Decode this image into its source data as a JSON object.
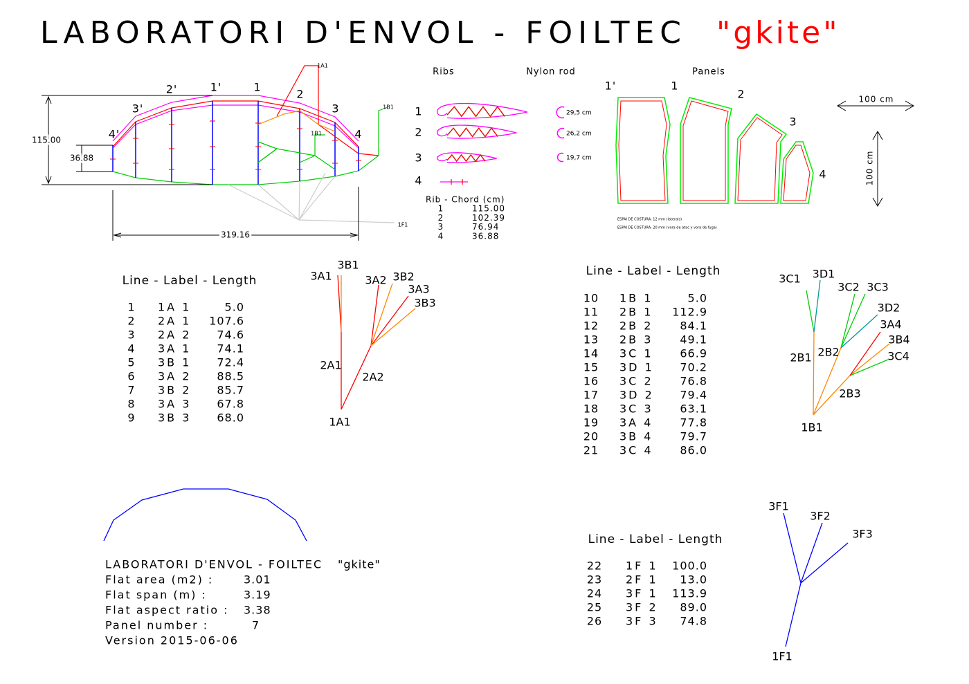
{
  "title": "LABORATORI D'ENVOL - FOILTEC",
  "title_tag": "\"gkite\"",
  "front_view": {
    "rib_labels": [
      "4'",
      "3'",
      "2'",
      "1'",
      "1",
      "2",
      "3",
      "4"
    ],
    "height": "115.00",
    "tip_height": "36.88",
    "span": "319.16",
    "anchors": [
      "1A1",
      "1B1",
      "1B1",
      "1F1"
    ]
  },
  "ribs": {
    "heading": "Ribs",
    "rod_heading": "Nylon rod",
    "numbers": [
      "1",
      "2",
      "3",
      "4"
    ],
    "rods": [
      "29,5 cm",
      "26,2 cm",
      "19,7 cm"
    ],
    "chord_header": "Rib - Chord (cm)",
    "chord_rows": [
      [
        "1",
        "115.00"
      ],
      [
        "2",
        "102.39"
      ],
      [
        "3",
        "76.94"
      ],
      [
        "4",
        "36.88"
      ]
    ]
  },
  "panels": {
    "heading": "Panels",
    "labels": [
      "1'",
      "1",
      "2",
      "3",
      "4"
    ],
    "notes": [
      "ESPAI DE COSTURA: 12 mm (laterals)",
      "ESPAI DE COSTURA: 20 mm (vora de atac y vora de fuga)"
    ],
    "scale": [
      "100 cm",
      "100 cm"
    ]
  },
  "line_tables": [
    {
      "header": "Line - Label - Length",
      "rows": [
        [
          "1",
          "1A 1",
          "5.0"
        ],
        [
          "2",
          "2A 1",
          "107.6"
        ],
        [
          "3",
          "2A 2",
          "74.6"
        ],
        [
          "4",
          "3A 1",
          "74.1"
        ],
        [
          "5",
          "3B 1",
          "72.4"
        ],
        [
          "6",
          "3A 2",
          "88.5"
        ],
        [
          "7",
          "3B 2",
          "85.7"
        ],
        [
          "8",
          "3A 3",
          "67.8"
        ],
        [
          "9",
          "3B 3",
          "68.0"
        ]
      ]
    },
    {
      "header": "Line - Label - Length",
      "rows": [
        [
          "10",
          "1B 1",
          "5.0"
        ],
        [
          "11",
          "2B 1",
          "112.9"
        ],
        [
          "12",
          "2B 2",
          "84.1"
        ],
        [
          "13",
          "2B 3",
          "49.1"
        ],
        [
          "14",
          "3C 1",
          "66.9"
        ],
        [
          "15",
          "3D 1",
          "70.2"
        ],
        [
          "16",
          "3C 2",
          "76.8"
        ],
        [
          "17",
          "3D 2",
          "79.4"
        ],
        [
          "18",
          "3C 3",
          "63.1"
        ],
        [
          "19",
          "3A 4",
          "77.8"
        ],
        [
          "20",
          "3B 4",
          "79.7"
        ],
        [
          "21",
          "3C 4",
          "86.0"
        ]
      ]
    },
    {
      "header": "Line - Label - Length",
      "rows": [
        [
          "22",
          "1F 1",
          "100.0"
        ],
        [
          "23",
          "2F 1",
          "13.0"
        ],
        [
          "24",
          "3F 1",
          "113.9"
        ],
        [
          "25",
          "3F 2",
          "89.0"
        ],
        [
          "26",
          "3F 3",
          "74.8"
        ]
      ]
    }
  ],
  "trees": [
    {
      "labels": [
        "3A1",
        "3B1",
        "3A2",
        "3B2",
        "3A3",
        "3B3",
        "2A1",
        "2A2",
        "1A1"
      ]
    },
    {
      "labels": [
        "3C1",
        "3D1",
        "3C2",
        "3C3",
        "3D2",
        "3A4",
        "3B4",
        "3C4",
        "2B1",
        "2B2",
        "2B3",
        "1B1"
      ]
    },
    {
      "labels": [
        "3F1",
        "3F2",
        "3F3",
        "1F1"
      ]
    }
  ],
  "info": {
    "rows": [
      [
        "LABORATORI D'ENVOL - FOILTEC",
        "\"gkite\""
      ],
      [
        "Flat area (m2) :",
        "3.01"
      ],
      [
        "Flat span (m) :",
        "3.19"
      ],
      [
        "Flat aspect ratio :",
        "3.38"
      ],
      [
        "Panel number :",
        "7"
      ],
      [
        "Version 2015-06-06"
      ]
    ]
  }
}
